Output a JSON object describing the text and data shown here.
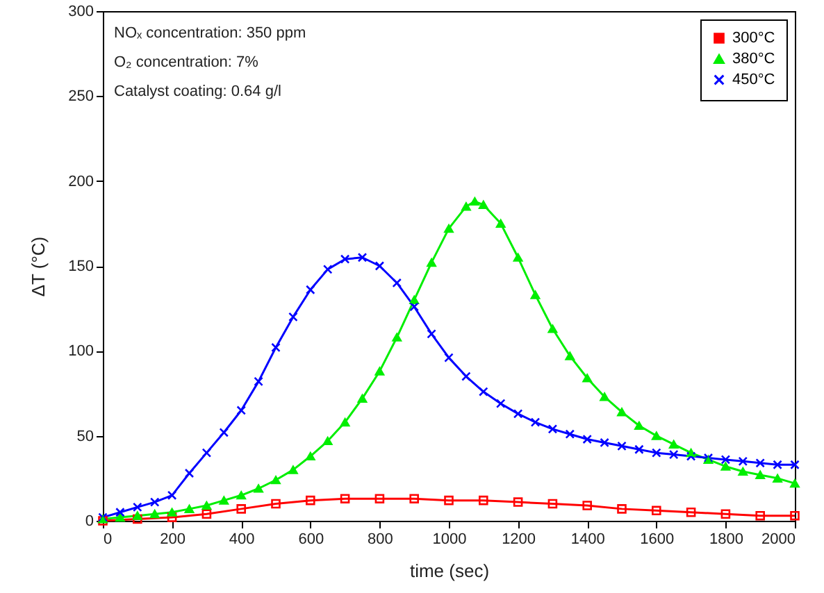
{
  "chart_data": {
    "type": "line",
    "xlabel": "time (sec)",
    "ylabel": "ΔT (°C)",
    "annotations": [
      "NOₓ concentration: 350 ppm",
      "O₂ concentration: 7%",
      "Catalyst coating: 0.64 g/l"
    ],
    "xlim": [
      0,
      2000
    ],
    "xticks": [
      0,
      200,
      400,
      600,
      800,
      1000,
      1200,
      1400,
      1600,
      1800,
      2000
    ],
    "ylim": [
      0,
      300
    ],
    "yticks": [
      0,
      50,
      100,
      150,
      200,
      250,
      300
    ],
    "grid": false,
    "legend": "top right",
    "series": [
      {
        "name": "300°C",
        "color": "#ff0000",
        "marker": "square",
        "x": [
          0,
          100,
          200,
          300,
          400,
          500,
          600,
          700,
          800,
          900,
          1000,
          1100,
          1200,
          1300,
          1400,
          1500,
          1600,
          1700,
          1800,
          1900,
          2000
        ],
        "values": [
          0,
          1,
          2,
          4,
          7,
          10,
          12,
          13,
          13,
          13,
          12,
          12,
          11,
          10,
          9,
          7,
          6,
          5,
          4,
          3,
          3
        ]
      },
      {
        "name": "380°C",
        "color": "#00ee00",
        "marker": "triangle",
        "x": [
          0,
          50,
          100,
          150,
          200,
          250,
          300,
          350,
          400,
          450,
          500,
          550,
          600,
          650,
          700,
          750,
          800,
          850,
          900,
          950,
          1000,
          1050,
          1075,
          1100,
          1150,
          1200,
          1250,
          1300,
          1350,
          1400,
          1450,
          1500,
          1550,
          1600,
          1650,
          1700,
          1750,
          1800,
          1850,
          1900,
          1950,
          2000
        ],
        "values": [
          1,
          2,
          3,
          4,
          5,
          7,
          9,
          12,
          15,
          19,
          24,
          30,
          38,
          47,
          58,
          72,
          88,
          108,
          130,
          152,
          172,
          185,
          188,
          186,
          175,
          155,
          133,
          113,
          97,
          84,
          73,
          64,
          56,
          50,
          45,
          40,
          36,
          32,
          29,
          27,
          25,
          22
        ]
      },
      {
        "name": "450°C",
        "color": "#0000ff",
        "marker": "cross",
        "x": [
          0,
          50,
          100,
          150,
          200,
          250,
          300,
          350,
          400,
          450,
          500,
          550,
          600,
          650,
          700,
          750,
          800,
          850,
          900,
          950,
          1000,
          1050,
          1100,
          1150,
          1200,
          1250,
          1300,
          1350,
          1400,
          1450,
          1500,
          1550,
          1600,
          1650,
          1700,
          1750,
          1800,
          1850,
          1900,
          1950,
          2000
        ],
        "values": [
          2,
          5,
          8,
          11,
          15,
          28,
          40,
          52,
          65,
          82,
          102,
          120,
          136,
          148,
          154,
          155,
          150,
          140,
          126,
          110,
          96,
          85,
          76,
          69,
          63,
          58,
          54,
          51,
          48,
          46,
          44,
          42,
          40,
          39,
          38,
          37,
          36,
          35,
          34,
          33,
          33
        ]
      }
    ]
  }
}
